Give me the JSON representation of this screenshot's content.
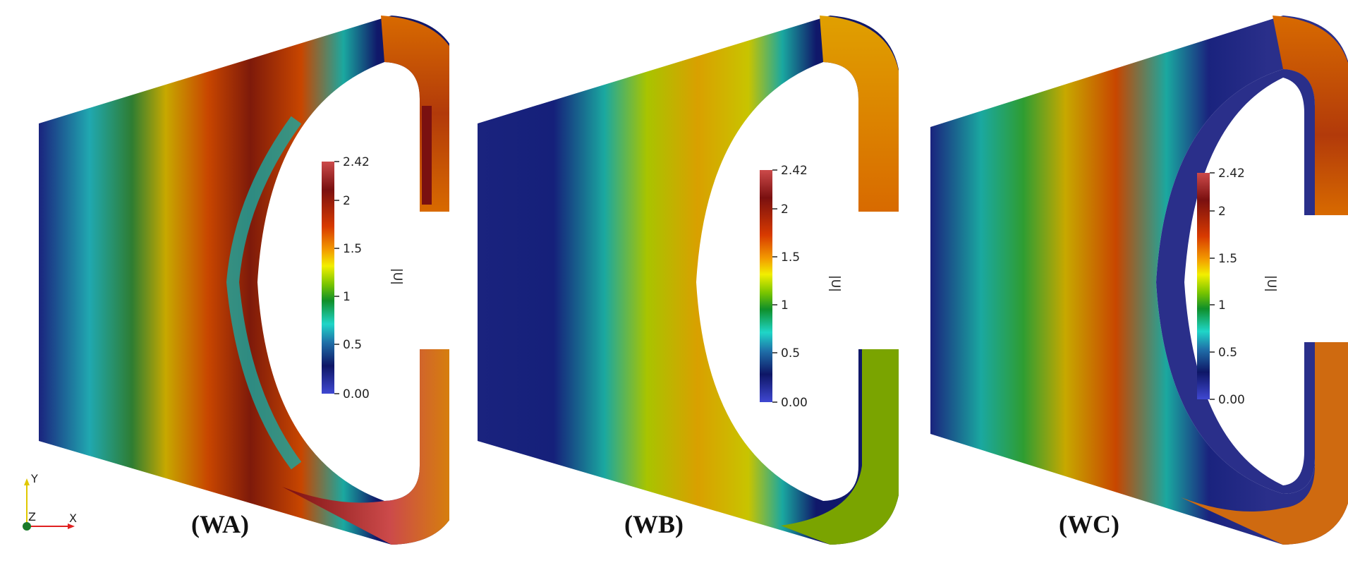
{
  "panels": [
    {
      "label": "(WA)"
    },
    {
      "label": "(WB)"
    },
    {
      "label": "(WC)"
    }
  ],
  "colorbar": {
    "title": "|U|",
    "ticks": [
      "2.42",
      "2",
      "1.5",
      "1",
      "0.5",
      "0.00"
    ],
    "colors": [
      "#cc4a4a",
      "#7a1010",
      "#d83a00",
      "#f39a00",
      "#f2ef00",
      "#78c400",
      "#0f8f2a",
      "#1fd6c8",
      "#1f6fa8",
      "#0e1666",
      "#3f48d2"
    ]
  },
  "axes_triad": {
    "y": "Y",
    "z": "Z",
    "x": "X"
  }
}
